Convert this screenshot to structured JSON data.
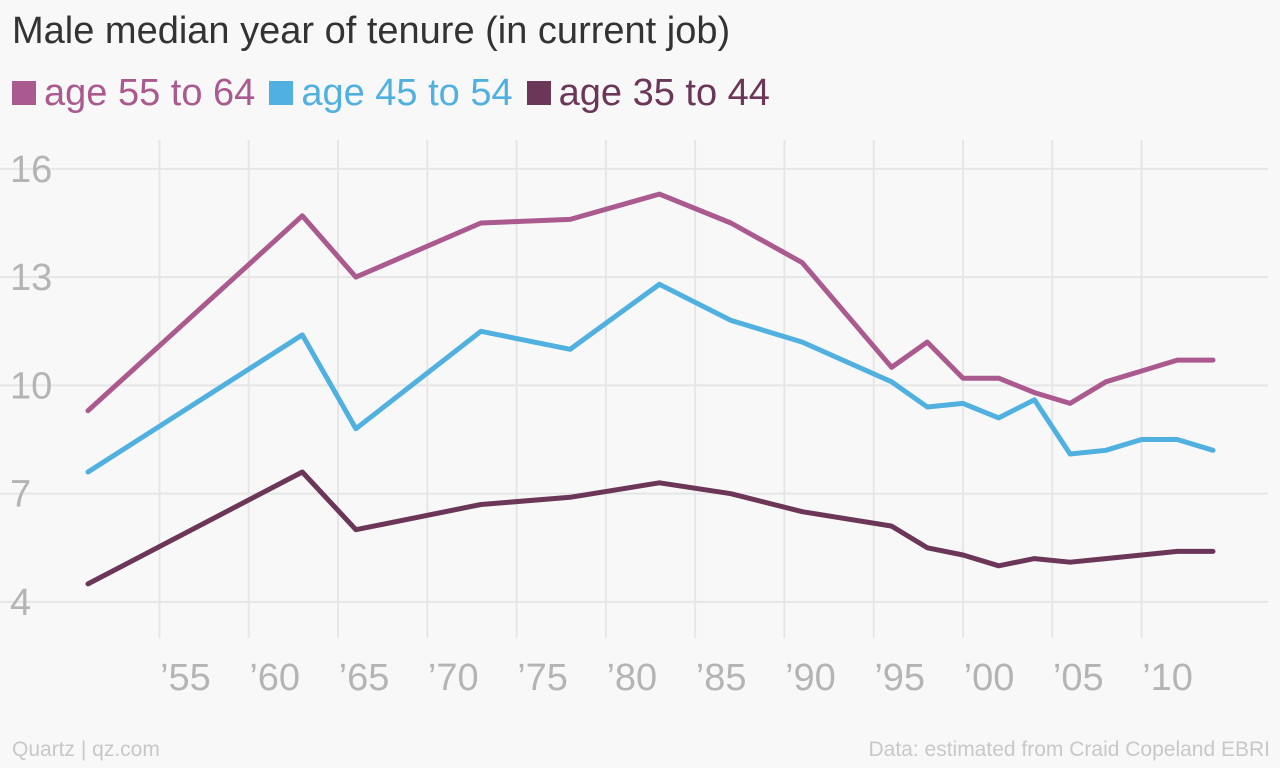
{
  "chart_data": {
    "type": "line",
    "title": "Male median year of tenure (in current job)",
    "xlabel": "",
    "ylabel": "",
    "xlim": [
      1951,
      2014
    ],
    "ylim": [
      3,
      16.8
    ],
    "y_ticks": [
      4,
      7,
      10,
      13,
      16
    ],
    "x_ticks": [
      {
        "value": 1955,
        "label": "’55"
      },
      {
        "value": 1960,
        "label": "’60"
      },
      {
        "value": 1965,
        "label": "’65"
      },
      {
        "value": 1970,
        "label": "’70"
      },
      {
        "value": 1975,
        "label": "’75"
      },
      {
        "value": 1980,
        "label": "’80"
      },
      {
        "value": 1985,
        "label": "’85"
      },
      {
        "value": 1990,
        "label": "’90"
      },
      {
        "value": 1995,
        "label": "’95"
      },
      {
        "value": 2000,
        "label": "’00"
      },
      {
        "value": 2005,
        "label": "’05"
      },
      {
        "value": 2010,
        "label": "’10"
      }
    ],
    "grid": true,
    "legend_position": "top-left",
    "series": [
      {
        "name": "age 55 to 64",
        "color": "#ab5a8f",
        "points": [
          [
            1951,
            9.3
          ],
          [
            1963,
            14.7
          ],
          [
            1966,
            13.0
          ],
          [
            1973,
            14.5
          ],
          [
            1978,
            14.6
          ],
          [
            1983,
            15.3
          ],
          [
            1987,
            14.5
          ],
          [
            1991,
            13.4
          ],
          [
            1996,
            10.5
          ],
          [
            1998,
            11.2
          ],
          [
            2000,
            10.2
          ],
          [
            2002,
            10.2
          ],
          [
            2004,
            9.8
          ],
          [
            2006,
            9.5
          ],
          [
            2008,
            10.1
          ],
          [
            2010,
            10.4
          ],
          [
            2012,
            10.7
          ],
          [
            2014,
            10.7
          ]
        ]
      },
      {
        "name": "age 45 to 54",
        "color": "#50b1e0",
        "points": [
          [
            1951,
            7.6
          ],
          [
            1963,
            11.4
          ],
          [
            1966,
            8.8
          ],
          [
            1973,
            11.5
          ],
          [
            1978,
            11.0
          ],
          [
            1983,
            12.8
          ],
          [
            1987,
            11.8
          ],
          [
            1991,
            11.2
          ],
          [
            1996,
            10.1
          ],
          [
            1998,
            9.4
          ],
          [
            2000,
            9.5
          ],
          [
            2002,
            9.1
          ],
          [
            2004,
            9.6
          ],
          [
            2006,
            8.1
          ],
          [
            2008,
            8.2
          ],
          [
            2010,
            8.5
          ],
          [
            2012,
            8.5
          ],
          [
            2014,
            8.2
          ]
        ]
      },
      {
        "name": "age 35 to 44",
        "color": "#6b3658",
        "points": [
          [
            1951,
            4.5
          ],
          [
            1963,
            7.6
          ],
          [
            1966,
            6.0
          ],
          [
            1973,
            6.7
          ],
          [
            1978,
            6.9
          ],
          [
            1983,
            7.3
          ],
          [
            1987,
            7.0
          ],
          [
            1991,
            6.5
          ],
          [
            1996,
            6.1
          ],
          [
            1998,
            5.5
          ],
          [
            2000,
            5.3
          ],
          [
            2002,
            5.0
          ],
          [
            2004,
            5.2
          ],
          [
            2006,
            5.1
          ],
          [
            2008,
            5.2
          ],
          [
            2010,
            5.3
          ],
          [
            2012,
            5.4
          ],
          [
            2014,
            5.4
          ]
        ]
      }
    ]
  },
  "footer": {
    "left": "Quartz | qz.com",
    "right": "Data: estimated from Craid Copeland EBRI"
  }
}
